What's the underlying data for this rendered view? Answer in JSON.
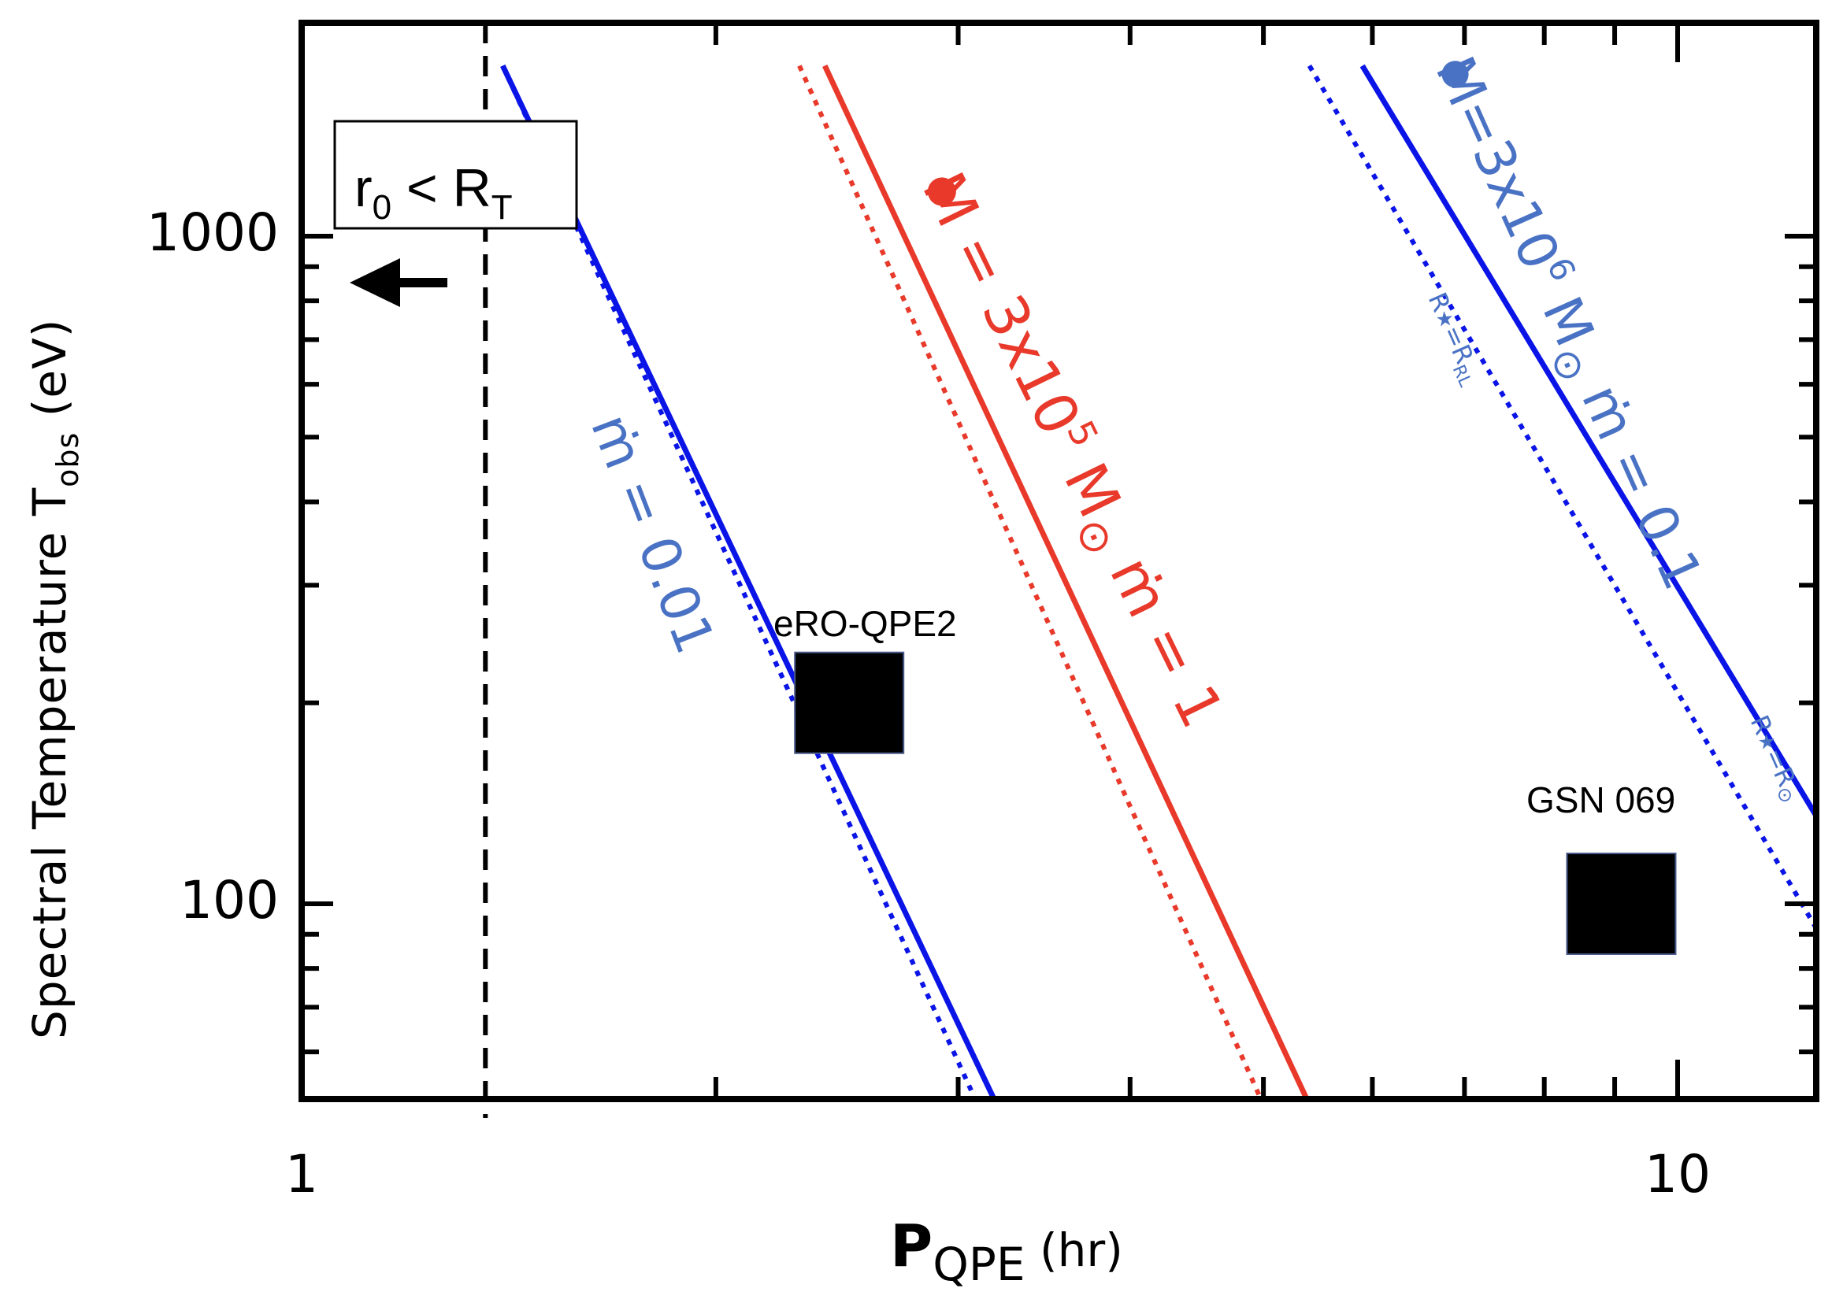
{
  "chart_data": {
    "type": "line",
    "xlabel_main": "P",
    "xlabel_sub": "QPE",
    "xlabel_unit": "(hr)",
    "ylabel_main": "Spectral Temperature  T",
    "ylabel_sub": "obs",
    "ylabel_unit": "(eV)",
    "x_scale": "log",
    "y_scale": "log",
    "xlim": [
      1,
      15
    ],
    "ylim": [
      50,
      1800
    ],
    "x_ticks": [
      1,
      10
    ],
    "x_tick_labels": [
      "1",
      "10"
    ],
    "y_ticks": [
      100,
      1000
    ],
    "y_tick_labels": [
      "100",
      "1000"
    ],
    "grid": false,
    "series": [
      {
        "id": "m001_solid",
        "color": "#0a14e6",
        "style": "solid",
        "x": [
          1.4,
          3.2
        ],
        "y": [
          1800,
          50
        ]
      },
      {
        "id": "m001_dotted",
        "color": "#0a14e6",
        "style": "dotted",
        "x": [
          1.4,
          3.1
        ],
        "y": [
          1800,
          50
        ]
      },
      {
        "id": "m3e5_solid",
        "color": "#e8392b",
        "style": "solid",
        "x": [
          2.4,
          5.4
        ],
        "y": [
          1800,
          50
        ]
      },
      {
        "id": "m3e5_dotted",
        "color": "#e8392b",
        "style": "dotted",
        "x": [
          2.3,
          5.0
        ],
        "y": [
          1800,
          50
        ]
      },
      {
        "id": "m3e6_solid",
        "color": "#0a14e6",
        "style": "solid",
        "x": [
          5.9,
          15
        ],
        "y": [
          1800,
          75
        ]
      },
      {
        "id": "m3e6_dotted",
        "color": "#0a14e6",
        "style": "dotted",
        "x": [
          5.4,
          15
        ],
        "y": [
          1800,
          50
        ]
      }
    ],
    "vertical_line": {
      "x": 1.36,
      "style": "dashed",
      "color": "#000000"
    },
    "points": [
      {
        "name": "eRO-QPE2",
        "x": 2.5,
        "y": 200,
        "marker": "square"
      },
      {
        "name": "GSN 069",
        "x": 9.1,
        "y": 100,
        "marker": "square"
      }
    ],
    "annotations": {
      "box_r": "r",
      "box_r_sub": "0",
      "box_lt": "<",
      "box_R": "R",
      "box_R_sub": "T",
      "m001": "ṁ = 0.01",
      "m3e5_a": "M",
      "m3e5_b": " = 3x10",
      "m3e5_exp": "5",
      "m3e5_c": " M",
      "m3e5_d": "ṁ = 1",
      "m3e6_a": "M",
      "m3e6_b": "=3x10",
      "m3e6_exp": "6",
      "m3e6_c": " M",
      "m3e6_d": "ṁ = 0.1",
      "rstar_rl_a": "R",
      "rstar_rl_b": "=R",
      "rstar_rl_sub": "RL",
      "rstar_rsun_a": "R",
      "rstar_rsun_b": "=R",
      "star_glyph": "★",
      "sun_glyph": "⊙"
    },
    "colors": {
      "blue_line": "#0a14e6",
      "blue_text": "#4a72c4",
      "red": "#e8392b"
    }
  }
}
